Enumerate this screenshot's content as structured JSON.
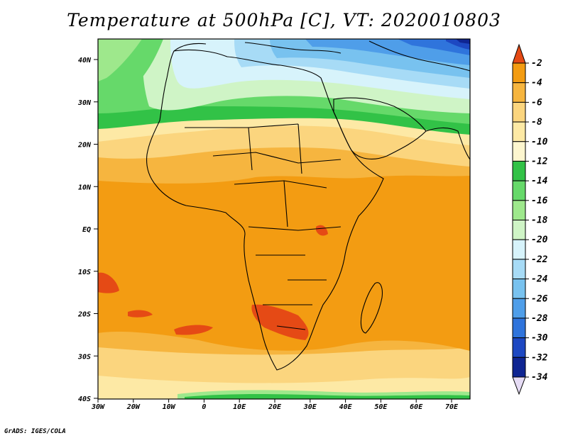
{
  "title": "Temperature at 500hPa [C], VT: 2020010803",
  "credit": "GrADS: IGES/COLA",
  "map": {
    "lat_labels": [
      "40N",
      "30N",
      "20N",
      "10N",
      "EQ",
      "10S",
      "20S",
      "30S",
      "40S"
    ],
    "lon_labels": [
      "30W",
      "20W",
      "10W",
      "0",
      "10E",
      "20E",
      "30E",
      "40E",
      "50E",
      "60E",
      "70E"
    ]
  },
  "colorbar": {
    "labels": [
      "-2",
      "-4",
      "-6",
      "-8",
      "-10",
      "-12",
      "-14",
      "-16",
      "-18",
      "-20",
      "-22",
      "-24",
      "-26",
      "-28",
      "-30",
      "-32",
      "-34"
    ],
    "colors": [
      "#e54a15",
      "#f39c12",
      "#f6b53f",
      "#fbd57e",
      "#fde9a5",
      "#fdf6cf",
      "#32c247",
      "#66d96a",
      "#9ee88c",
      "#cff4c6",
      "#d7f3fb",
      "#a7dbf6",
      "#78c2ef",
      "#4f9ee9",
      "#2f74dc",
      "#1d48c2",
      "#0f2592",
      "#e6dcf5"
    ]
  }
}
